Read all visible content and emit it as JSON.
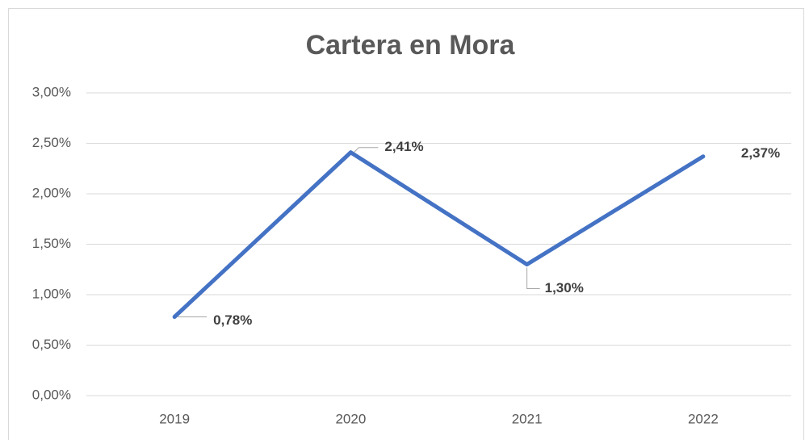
{
  "chart_data": {
    "type": "line",
    "title": "Cartera en Mora",
    "categories": [
      "2019",
      "2020",
      "2021",
      "2022"
    ],
    "values": [
      0.78,
      2.41,
      1.3,
      2.37
    ],
    "value_labels": [
      "0,78%",
      "2,41%",
      "1,30%",
      "2,37%"
    ],
    "color": "#4472c4",
    "ylim": [
      0,
      3
    ],
    "yticks": [
      {
        "value": 0,
        "label": "0,00%"
      },
      {
        "value": 0.5,
        "label": "0,50%"
      },
      {
        "value": 1,
        "label": "1,00%"
      },
      {
        "value": 1.5,
        "label": "1,50%"
      },
      {
        "value": 2,
        "label": "2,00%"
      },
      {
        "value": 2.5,
        "label": "2,50%"
      },
      {
        "value": 3,
        "label": "3,00%"
      }
    ],
    "grid": true
  }
}
